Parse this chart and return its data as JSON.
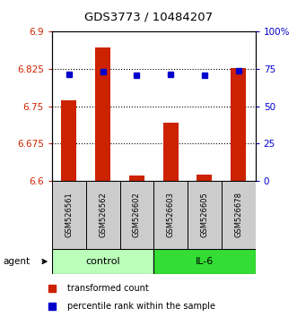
{
  "title": "GDS3773 / 10484207",
  "samples": [
    "GSM526561",
    "GSM526562",
    "GSM526602",
    "GSM526603",
    "GSM526605",
    "GSM526678"
  ],
  "bar_bottoms": [
    6.6,
    6.6,
    6.6,
    6.6,
    6.6,
    6.6
  ],
  "bar_tops": [
    6.762,
    6.868,
    6.61,
    6.716,
    6.612,
    6.826
  ],
  "percentile_values": [
    6.815,
    6.82,
    6.812,
    6.814,
    6.812,
    6.821
  ],
  "ylim": [
    6.6,
    6.9
  ],
  "y_ticks": [
    6.6,
    6.675,
    6.75,
    6.825,
    6.9
  ],
  "y_tick_labels": [
    "6.6",
    "6.675",
    "6.75",
    "6.825",
    "6.9"
  ],
  "right_y_ticks": [
    0,
    25,
    50,
    75,
    100
  ],
  "right_y_tick_labels": [
    "0",
    "25",
    "50",
    "75",
    "100%"
  ],
  "bar_color": "#cc2200",
  "dot_color": "#0000cc",
  "control_color": "#bbffbb",
  "il6_color": "#33dd33",
  "control_label": "control",
  "il6_label": "IL-6",
  "agent_label": "agent",
  "legend_transformed": "transformed count",
  "legend_percentile": "percentile rank within the sample",
  "background_color": "#ffffff"
}
